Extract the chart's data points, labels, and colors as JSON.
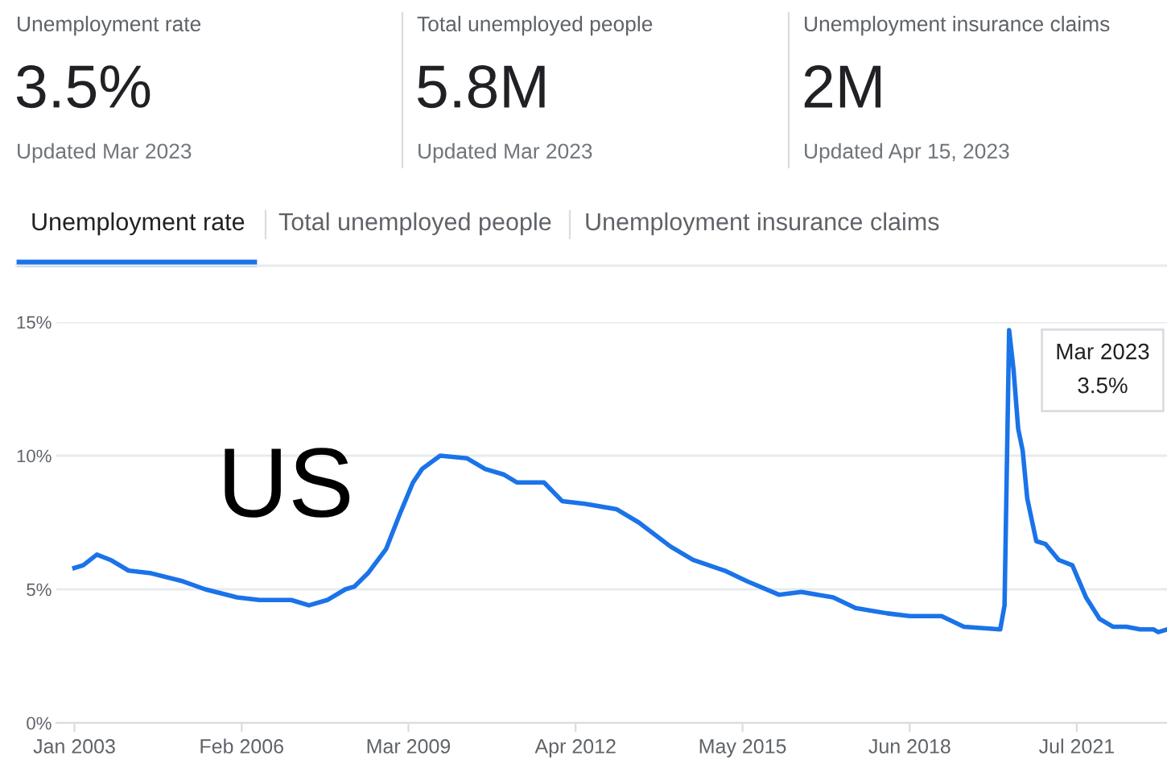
{
  "chart_data": {
    "type": "line",
    "annotations": [
      "Unemployment rate",
      "3.5%",
      "Updated Mar 2023",
      "Total unemployed people",
      "5.8M",
      "Updated Mar 2023",
      "Unemployment insurance claims",
      "2M",
      "Updated Apr 15, 2023",
      "Unemployment rate",
      "Total unemployed people",
      "Unemployment insurance claims",
      "US",
      "Mar 2023\n3.5%"
    ],
    "x": [
      "2003-01",
      "2003-03",
      "2003-06",
      "2003-09",
      "2004-01",
      "2004-06",
      "2005-01",
      "2005-06",
      "2006-01",
      "2006-06",
      "2007-01",
      "2007-05",
      "2007-09",
      "2008-01",
      "2008-03",
      "2008-06",
      "2008-10",
      "2009-01",
      "2009-04",
      "2009-06",
      "2009-10",
      "2010-04",
      "2010-08",
      "2010-12",
      "2011-03",
      "2011-09",
      "2012-01",
      "2012-06",
      "2013-01",
      "2013-06",
      "2014-01",
      "2014-06",
      "2015-01",
      "2015-06",
      "2016-01",
      "2016-06",
      "2017-01",
      "2017-06",
      "2018-01",
      "2018-06",
      "2019-01",
      "2019-06",
      "2020-02",
      "2020-03",
      "2020-04",
      "2020-05",
      "2020-06",
      "2020-07",
      "2020-08",
      "2020-10",
      "2020-12",
      "2021-03",
      "2021-06",
      "2021-09",
      "2021-12",
      "2022-03",
      "2022-06",
      "2022-09",
      "2022-12",
      "2023-01",
      "2023-03"
    ],
    "series": [
      {
        "color": "#1a73e8",
        "values": [
          5.8,
          5.9,
          6.3,
          6.1,
          5.7,
          5.6,
          5.3,
          5.0,
          4.7,
          4.6,
          4.6,
          4.4,
          4.6,
          5.0,
          5.1,
          5.6,
          6.5,
          7.8,
          9.0,
          9.5,
          10.0,
          9.9,
          9.5,
          9.3,
          9.0,
          9.0,
          8.3,
          8.2,
          8.0,
          7.5,
          6.6,
          6.1,
          5.7,
          5.3,
          4.8,
          4.9,
          4.7,
          4.3,
          4.1,
          4.0,
          4.0,
          3.6,
          3.5,
          4.4,
          14.7,
          13.2,
          11.0,
          10.2,
          8.4,
          6.8,
          6.7,
          6.1,
          5.9,
          4.7,
          3.9,
          3.6,
          3.6,
          3.5,
          3.5,
          3.4,
          3.5
        ]
      }
    ],
    "xlim": [
      "2002-09",
      "2023-03"
    ],
    "xticks": [
      {
        "value": "2003-01",
        "label": "Jan 2003"
      },
      {
        "value": "2006-02",
        "label": "Feb 2006"
      },
      {
        "value": "2009-03",
        "label": "Mar 2009"
      },
      {
        "value": "2012-04",
        "label": "Apr 2012"
      },
      {
        "value": "2015-05",
        "label": "May 2015"
      },
      {
        "value": "2018-06",
        "label": "Jun 2018"
      },
      {
        "value": "2021-07",
        "label": "Jul 2021"
      }
    ],
    "ylim": [
      0,
      15
    ],
    "yticks": [
      {
        "value": 0,
        "label": "0%"
      },
      {
        "value": 5,
        "label": "5%"
      },
      {
        "value": 10,
        "label": "10%"
      },
      {
        "value": 15,
        "label": "15%"
      }
    ],
    "grid": "y",
    "marker": "none",
    "line_style": "solid",
    "legend": false
  }
}
